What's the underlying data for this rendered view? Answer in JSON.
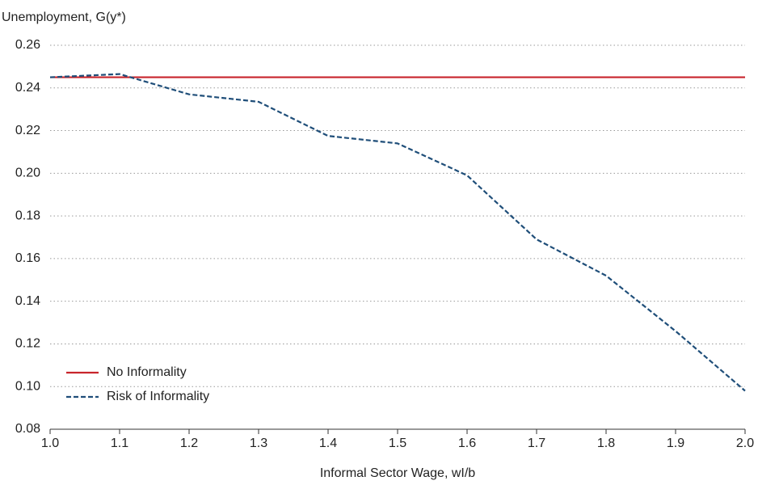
{
  "chart_data": {
    "type": "line",
    "y_label": "Unemployment, G(y*)",
    "x_label": "Informal Sector Wage, wI/b",
    "x": [
      1.0,
      1.1,
      1.2,
      1.3,
      1.4,
      1.5,
      1.6,
      1.7,
      1.8,
      1.9,
      2.0
    ],
    "series": [
      {
        "name": "No Informality",
        "color": "#c8252c",
        "dashed": false,
        "values": [
          0.245,
          0.245,
          0.245,
          0.245,
          0.245,
          0.245,
          0.245,
          0.245,
          0.245,
          0.245,
          0.245
        ]
      },
      {
        "name": "Risk of Informality",
        "color": "#1f4e79",
        "dashed": true,
        "values": [
          0.245,
          0.2465,
          0.237,
          0.2335,
          0.2175,
          0.214,
          0.199,
          0.169,
          0.152,
          0.126,
          0.098
        ]
      }
    ],
    "xlim": [
      1.0,
      2.0
    ],
    "xticks": [
      {
        "value": 1.0,
        "label": "1.0"
      },
      1.1,
      1.2,
      1.3,
      1.4,
      1.5,
      1.6,
      1.7,
      1.8,
      1.9,
      {
        "value": 2.0,
        "label": "2.0"
      }
    ],
    "ylim": [
      0.08,
      0.26
    ],
    "yticks": [
      0.08,
      {
        "value": 0.1,
        "label": "0.10"
      },
      0.12,
      0.14,
      0.16,
      0.18,
      {
        "value": 0.2,
        "label": "0.20"
      },
      0.22,
      0.24,
      0.26
    ],
    "grid": true,
    "legend": "lower left"
  }
}
